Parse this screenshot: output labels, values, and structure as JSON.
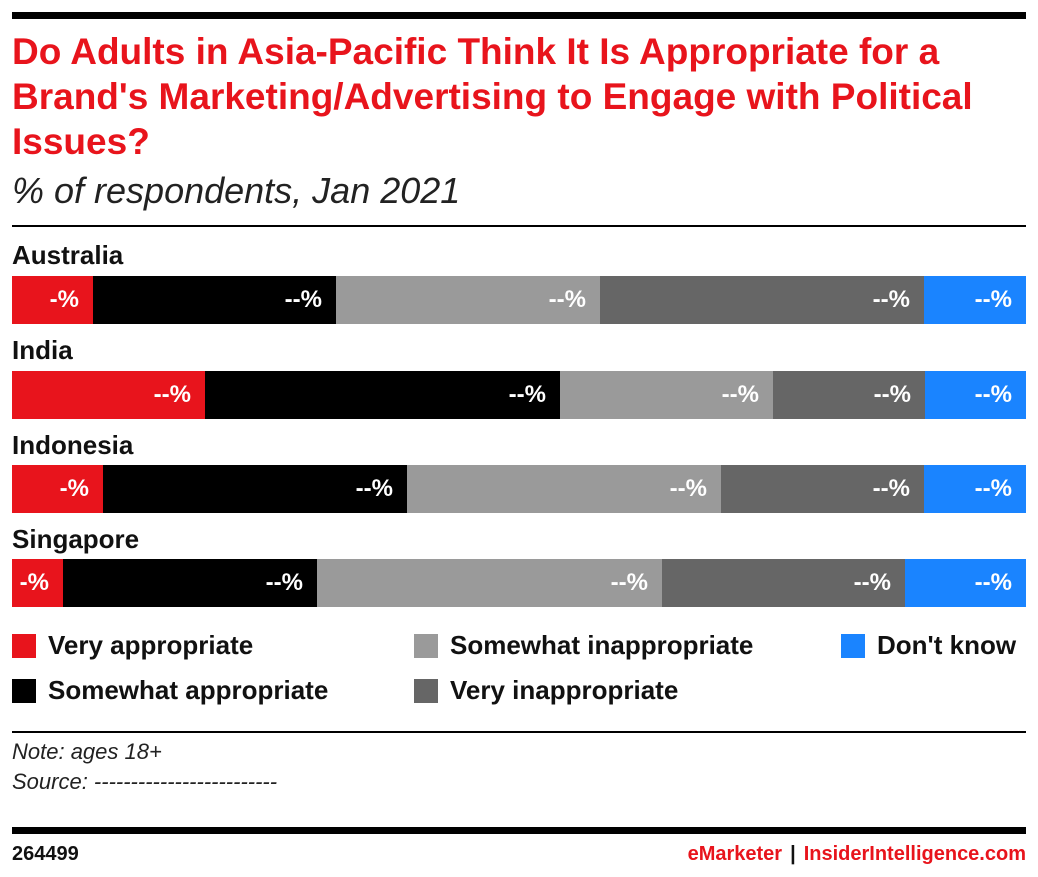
{
  "title": "Do Adults in Asia-Pacific Think It Is Appropriate for a Brand's Marketing/Advertising to Engage with Political Issues?",
  "subtitle": "% of respondents, Jan 2021",
  "colors": {
    "very_appropriate": "#e8141c",
    "somewhat_appropriate": "#000000",
    "somewhat_inappropriate": "#9a9a9a",
    "very_inappropriate": "#666666",
    "dont_know": "#1a84ff",
    "accent": "#e8141c"
  },
  "chart_data": {
    "type": "bar",
    "orientation": "horizontal",
    "stacked": true,
    "categories": [
      "Australia",
      "India",
      "Indonesia",
      "Singapore"
    ],
    "series": [
      {
        "name": "Very appropriate",
        "values": [
          8,
          19,
          9,
          5
        ],
        "labels": [
          "-%",
          "--%",
          "-%",
          "-%"
        ]
      },
      {
        "name": "Somewhat appropriate",
        "values": [
          24,
          35,
          30,
          25
        ],
        "labels": [
          "--%",
          "--%",
          "--%",
          "--%"
        ]
      },
      {
        "name": "Somewhat inappropriate",
        "values": [
          26,
          21,
          31,
          34
        ],
        "labels": [
          "--%",
          "--%",
          "--%",
          "--%"
        ]
      },
      {
        "name": "Very inappropriate",
        "values": [
          32,
          15,
          20,
          24
        ],
        "labels": [
          "--%",
          "--%",
          "--%",
          "--%"
        ]
      },
      {
        "name": "Don't know",
        "values": [
          10,
          10,
          10,
          12
        ],
        "labels": [
          "--%",
          "--%",
          "--%",
          "--%"
        ]
      }
    ],
    "xlim": [
      0,
      100
    ],
    "legend_position": "bottom"
  },
  "legend": [
    {
      "label": "Very appropriate",
      "color_key": "very_appropriate"
    },
    {
      "label": "Somewhat appropriate",
      "color_key": "somewhat_appropriate"
    },
    {
      "label": "Somewhat inappropriate",
      "color_key": "somewhat_inappropriate"
    },
    {
      "label": "Very inappropriate",
      "color_key": "very_inappropriate"
    },
    {
      "label": "Don't know",
      "color_key": "dont_know"
    }
  ],
  "note": "Note: ages 18+",
  "source": "Source: -------------------------",
  "footer": {
    "chart_id": "264499",
    "brand_left": "eMarketer",
    "separator": "|",
    "brand_right": "InsiderIntelligence.com"
  }
}
